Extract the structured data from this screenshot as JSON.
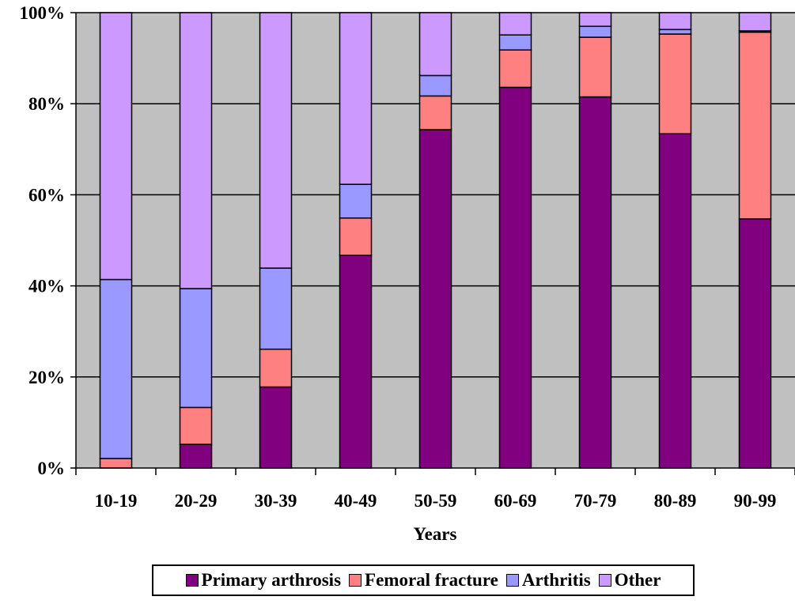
{
  "chart_data": {
    "type": "bar",
    "stacked": true,
    "percent": true,
    "categories": [
      "10-19",
      "20-29",
      "30-39",
      "40-49",
      "50-59",
      "60-69",
      "70-79",
      "80-89",
      "90-99"
    ],
    "series": [
      {
        "name": "Primary arthrosis",
        "color": "#800080",
        "values": [
          0,
          5.2,
          17.8,
          46.7,
          74.3,
          83.6,
          81.5,
          73.4,
          54.7
        ]
      },
      {
        "name": "Femoral fracture",
        "color": "#ff8080",
        "values": [
          2.1,
          8.1,
          8.3,
          8.2,
          7.4,
          8.2,
          13.1,
          21.9,
          41.0
        ]
      },
      {
        "name": "Arthritis",
        "color": "#9999ff",
        "values": [
          39.3,
          26.1,
          17.8,
          7.4,
          4.5,
          3.3,
          2.4,
          1.0,
          0.3
        ]
      },
      {
        "name": "Other",
        "color": "#cc99ff",
        "values": [
          58.6,
          60.6,
          56.1,
          37.7,
          13.8,
          4.9,
          3.0,
          3.7,
          4.0
        ]
      }
    ],
    "xlabel": "Years",
    "ylabel": "",
    "ylim": [
      0,
      100
    ],
    "yticks": [
      "0%",
      "20%",
      "40%",
      "60%",
      "80%",
      "100%"
    ],
    "grid": true,
    "plot_background": "#c0c0c0",
    "legend_position": "bottom"
  }
}
